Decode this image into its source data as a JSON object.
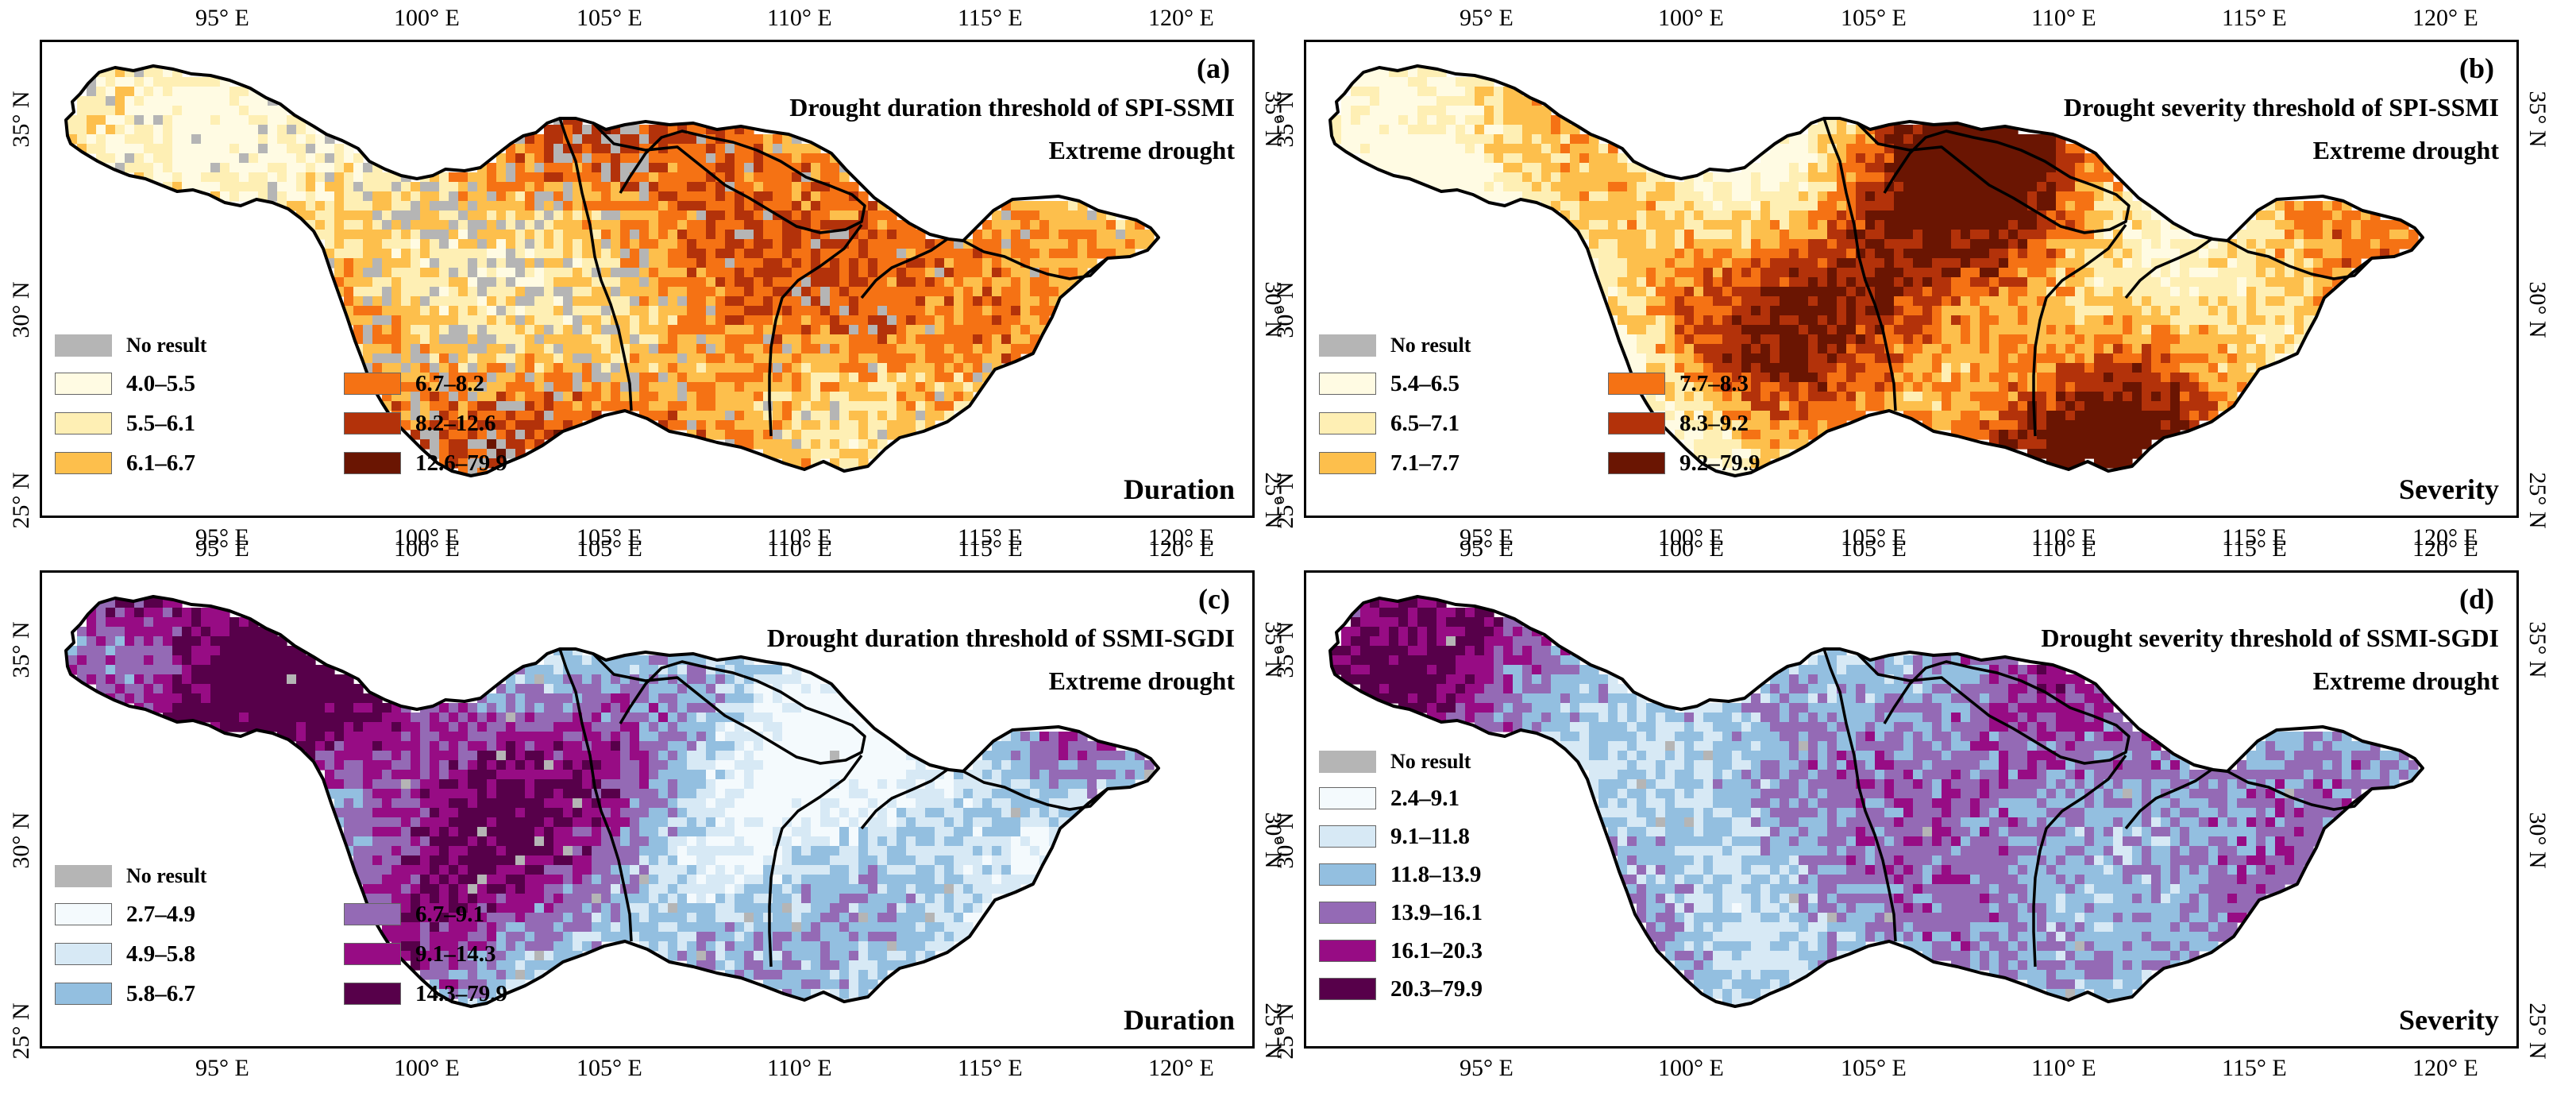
{
  "x_ticks": [
    "95° E",
    "100° E",
    "105° E",
    "110° E",
    "115° E",
    "120° E"
  ],
  "y_ticks": [
    "35° N",
    "30° N",
    "25° N"
  ],
  "no_result_label": "No result",
  "panels": [
    {
      "id": "a",
      "label": "(a)",
      "title": "Drought duration threshold of SPI-SSMI",
      "subtitle": "Extreme drought",
      "corner": "Duration",
      "legend_layout": "two-column",
      "palette": "orange",
      "classes": [
        "4.0–5.5",
        "5.5–6.1",
        "6.1–6.7",
        "6.7–8.2",
        "8.2–12.6",
        "12.6–79.9"
      ],
      "colors": [
        "#fffbe3",
        "#feefb4",
        "#fdbf4c",
        "#f57214",
        "#b3320a",
        "#6a1502"
      ],
      "nodata_color": "#b5b5b5"
    },
    {
      "id": "b",
      "label": "(b)",
      "title": "Drought severity threshold of SPI-SSMI",
      "subtitle": "Extreme drought",
      "corner": "Severity",
      "legend_layout": "two-column",
      "palette": "orange",
      "classes": [
        "5.4–6.5",
        "6.5–7.1",
        "7.1–7.7",
        "7.7–8.3",
        "8.3–9.2",
        "9.2–79.9"
      ],
      "colors": [
        "#fffbe3",
        "#feefb4",
        "#fdbf4c",
        "#f57214",
        "#b3320a",
        "#6a1502"
      ],
      "nodata_color": "#b5b5b5"
    },
    {
      "id": "c",
      "label": "(c)",
      "title": "Drought duration threshold of SSMI-SGDI",
      "subtitle": "Extreme drought",
      "corner": "Duration",
      "legend_layout": "two-column",
      "palette": "purple",
      "classes": [
        "2.7–4.9",
        "4.9–5.8",
        "5.8–6.7",
        "6.7–9.1",
        "9.1–14.3",
        "14.3–79.9"
      ],
      "colors": [
        "#f4fafd",
        "#d7e9f5",
        "#93bfe0",
        "#946ab5",
        "#970c84",
        "#57004a"
      ],
      "nodata_color": "#b5b5b5"
    },
    {
      "id": "d",
      "label": "(d)",
      "title": "Drought severity threshold of SSMI-SGDI",
      "subtitle": "Extreme drought",
      "corner": "Severity",
      "legend_layout": "one-column",
      "palette": "purple",
      "classes": [
        "2.4–9.1",
        "9.1–11.8",
        "11.8–13.9",
        "13.9–16.1",
        "16.1–20.3",
        "20.3–79.9"
      ],
      "colors": [
        "#f4fafd",
        "#d7e9f5",
        "#93bfe0",
        "#946ab5",
        "#970c84",
        "#57004a"
      ],
      "nodata_color": "#b5b5b5"
    }
  ]
}
